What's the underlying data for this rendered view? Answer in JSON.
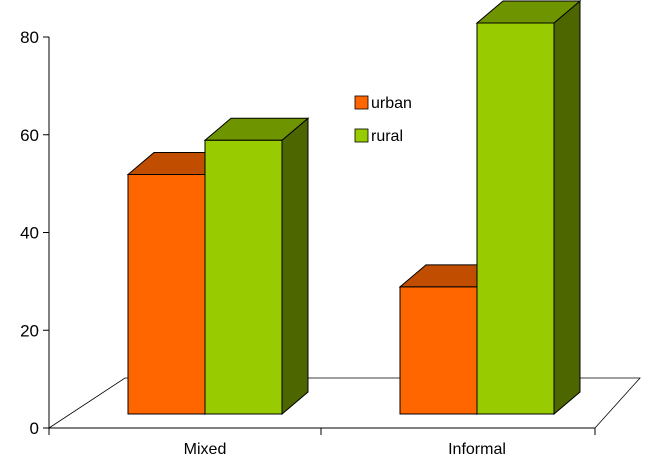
{
  "chart_data": {
    "type": "bar",
    "categories": [
      "Mixed",
      "Informal"
    ],
    "series": [
      {
        "name": "urban",
        "values": [
          49,
          26
        ],
        "color": "#FF6600",
        "top_color": "#C04D00",
        "side_color": "#A04000"
      },
      {
        "name": "rural",
        "values": [
          56,
          80
        ],
        "color": "#99CC00",
        "top_color": "#6E9400",
        "side_color": "#4D6600"
      }
    ],
    "ylim": [
      0,
      80
    ],
    "yticks": [
      0,
      20,
      40,
      60,
      80
    ],
    "title": "",
    "xlabel": "",
    "ylabel": "",
    "grid": false,
    "legend_position": "top-center",
    "three_d": true
  }
}
